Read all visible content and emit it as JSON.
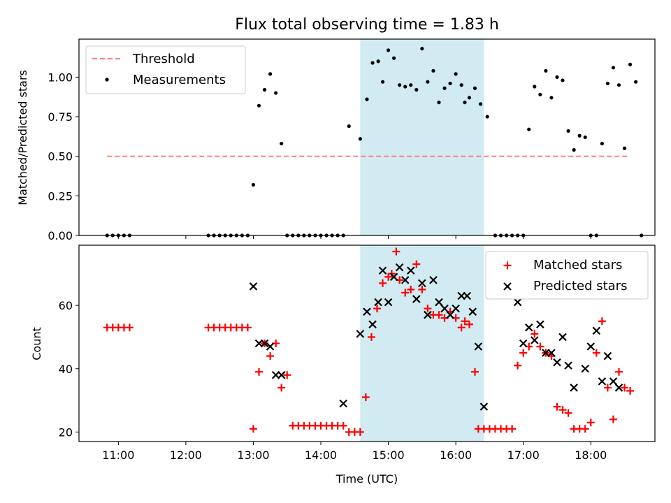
{
  "colors": {
    "threshold": "#ff7f7f",
    "measurement": "#000000",
    "matched": "#ff0000",
    "predicted": "#000000",
    "span": "#add8e6"
  },
  "chart_data": [
    {
      "type": "scatter",
      "title": "Flux total observing time = 1.83 h",
      "xlabel": "",
      "ylabel": "Matched/Predicted stars",
      "xlim": [
        "10:25",
        "18:57"
      ],
      "ylim": [
        0,
        1.24
      ],
      "y_ticks": [
        0,
        0.25,
        0.5,
        0.75,
        1.0
      ],
      "y_tick_labels": [
        "0.00",
        "0.25",
        "0.50",
        "0.75",
        "1.00"
      ],
      "highlight_span": [
        "14:35",
        "16:25"
      ],
      "legend": {
        "location": "upper left",
        "entries": [
          "Threshold",
          "Measurements"
        ]
      },
      "series": [
        {
          "name": "Threshold",
          "kind": "dashed-line",
          "points": [
            [
              "10:50",
              0.5
            ],
            [
              "18:35",
              0.5
            ]
          ]
        },
        {
          "name": "Measurements",
          "kind": "dot",
          "points": [
            [
              "10:50",
              0
            ],
            [
              "10:55",
              0
            ],
            [
              "11:00",
              0
            ],
            [
              "11:05",
              0
            ],
            [
              "11:10",
              0
            ],
            [
              "12:20",
              0
            ],
            [
              "12:25",
              0
            ],
            [
              "12:30",
              0
            ],
            [
              "12:35",
              0
            ],
            [
              "12:40",
              0
            ],
            [
              "12:45",
              0
            ],
            [
              "12:50",
              0
            ],
            [
              "12:55",
              0
            ],
            [
              "13:00",
              0.32
            ],
            [
              "13:05",
              0.82
            ],
            [
              "13:10",
              0.92
            ],
            [
              "13:15",
              1.02
            ],
            [
              "13:20",
              0.9
            ],
            [
              "13:25",
              0.58
            ],
            [
              "13:30",
              0
            ],
            [
              "13:35",
              0
            ],
            [
              "13:40",
              0
            ],
            [
              "13:45",
              0
            ],
            [
              "13:50",
              0
            ],
            [
              "13:55",
              0
            ],
            [
              "14:00",
              0
            ],
            [
              "14:05",
              0
            ],
            [
              "14:10",
              0
            ],
            [
              "14:15",
              0
            ],
            [
              "14:20",
              0
            ],
            [
              "14:25",
              0.69
            ],
            [
              "14:35",
              0.61
            ],
            [
              "14:41",
              0.86
            ],
            [
              "14:46",
              1.09
            ],
            [
              "14:51",
              1.1
            ],
            [
              "14:55",
              0.97
            ],
            [
              "15:00",
              1.17
            ],
            [
              "15:05",
              1.12
            ],
            [
              "15:10",
              0.95
            ],
            [
              "15:15",
              0.94
            ],
            [
              "15:20",
              0.95
            ],
            [
              "15:25",
              0.92
            ],
            [
              "15:30",
              1.18
            ],
            [
              "15:35",
              0.97
            ],
            [
              "15:40",
              1.04
            ],
            [
              "15:45",
              0.84
            ],
            [
              "15:50",
              0.93
            ],
            [
              "15:55",
              0.96
            ],
            [
              "16:00",
              1.02
            ],
            [
              "16:05",
              0.95
            ],
            [
              "16:08",
              0.84
            ],
            [
              "16:12",
              0.87
            ],
            [
              "16:17",
              0.93
            ],
            [
              "16:22",
              0.83
            ],
            [
              "16:28",
              0.75
            ],
            [
              "16:35",
              0
            ],
            [
              "16:40",
              0
            ],
            [
              "16:45",
              0
            ],
            [
              "16:50",
              0
            ],
            [
              "16:55",
              0
            ],
            [
              "17:00",
              0
            ],
            [
              "17:05",
              0.67
            ],
            [
              "17:10",
              0.94
            ],
            [
              "17:15",
              0.89
            ],
            [
              "17:20",
              1.04
            ],
            [
              "17:25",
              0.87
            ],
            [
              "17:30",
              1.0
            ],
            [
              "17:35",
              0.98
            ],
            [
              "17:40",
              0.66
            ],
            [
              "17:45",
              0.54
            ],
            [
              "17:50",
              0.63
            ],
            [
              "17:55",
              0.62
            ],
            [
              "18:00",
              0
            ],
            [
              "18:05",
              0
            ],
            [
              "18:10",
              0.58
            ],
            [
              "18:15",
              0.96
            ],
            [
              "18:20",
              1.06
            ],
            [
              "18:25",
              0.95
            ],
            [
              "18:30",
              0.55
            ],
            [
              "18:35",
              1.08
            ],
            [
              "18:40",
              0.97
            ],
            [
              "18:45",
              0
            ]
          ]
        }
      ]
    },
    {
      "type": "scatter",
      "title": "",
      "xlabel": "Time (UTC)",
      "ylabel": "Count",
      "xlim": [
        "10:25",
        "18:57"
      ],
      "ylim": [
        17,
        79
      ],
      "x_ticks": [
        "11:00",
        "12:00",
        "13:00",
        "14:00",
        "15:00",
        "16:00",
        "17:00",
        "18:00"
      ],
      "y_ticks": [
        20,
        40,
        60
      ],
      "highlight_span": [
        "14:35",
        "16:25"
      ],
      "legend": {
        "location": "upper right",
        "entries": [
          "Matched stars",
          "Predicted stars"
        ]
      },
      "series": [
        {
          "name": "Matched stars",
          "kind": "plus",
          "points": [
            [
              "10:50",
              53
            ],
            [
              "10:55",
              53
            ],
            [
              "11:00",
              53
            ],
            [
              "11:05",
              53
            ],
            [
              "11:10",
              53
            ],
            [
              "12:20",
              53
            ],
            [
              "12:25",
              53
            ],
            [
              "12:30",
              53
            ],
            [
              "12:35",
              53
            ],
            [
              "12:40",
              53
            ],
            [
              "12:45",
              53
            ],
            [
              "12:50",
              53
            ],
            [
              "12:55",
              53
            ],
            [
              "13:00",
              21
            ],
            [
              "13:05",
              39
            ],
            [
              "13:10",
              48
            ],
            [
              "13:15",
              44
            ],
            [
              "13:20",
              48
            ],
            [
              "13:25",
              34
            ],
            [
              "13:30",
              38
            ],
            [
              "13:35",
              22
            ],
            [
              "13:40",
              22
            ],
            [
              "13:45",
              22
            ],
            [
              "13:50",
              22
            ],
            [
              "13:55",
              22
            ],
            [
              "14:00",
              22
            ],
            [
              "14:05",
              22
            ],
            [
              "14:10",
              22
            ],
            [
              "14:15",
              22
            ],
            [
              "14:20",
              22
            ],
            [
              "14:25",
              20
            ],
            [
              "14:30",
              20
            ],
            [
              "14:35",
              20
            ],
            [
              "14:40",
              31
            ],
            [
              "14:45",
              50
            ],
            [
              "14:50",
              59
            ],
            [
              "14:55",
              67
            ],
            [
              "15:00",
              69
            ],
            [
              "15:03",
              70
            ],
            [
              "15:07",
              77
            ],
            [
              "15:10",
              68
            ],
            [
              "15:15",
              64
            ],
            [
              "15:20",
              65
            ],
            [
              "15:25",
              73
            ],
            [
              "15:30",
              65
            ],
            [
              "15:35",
              59
            ],
            [
              "15:40",
              57
            ],
            [
              "15:45",
              57
            ],
            [
              "15:50",
              56
            ],
            [
              "15:55",
              58
            ],
            [
              "16:00",
              56
            ],
            [
              "16:05",
              53
            ],
            [
              "16:08",
              55
            ],
            [
              "16:12",
              54
            ],
            [
              "16:17",
              39
            ],
            [
              "16:20",
              21
            ],
            [
              "16:25",
              21
            ],
            [
              "16:30",
              21
            ],
            [
              "16:35",
              21
            ],
            [
              "16:40",
              21
            ],
            [
              "16:45",
              21
            ],
            [
              "16:50",
              21
            ],
            [
              "16:55",
              41
            ],
            [
              "17:00",
              45
            ],
            [
              "17:05",
              47
            ],
            [
              "17:10",
              51
            ],
            [
              "17:15",
              47
            ],
            [
              "17:20",
              45
            ],
            [
              "17:25",
              44
            ],
            [
              "17:30",
              28
            ],
            [
              "17:35",
              27
            ],
            [
              "17:40",
              26
            ],
            [
              "17:45",
              21
            ],
            [
              "17:50",
              21
            ],
            [
              "17:55",
              21
            ],
            [
              "18:00",
              23
            ],
            [
              "18:05",
              45
            ],
            [
              "18:10",
              55
            ],
            [
              "18:15",
              34
            ],
            [
              "18:20",
              24
            ],
            [
              "18:25",
              39
            ],
            [
              "18:30",
              34
            ],
            [
              "18:35",
              33
            ]
          ]
        },
        {
          "name": "Predicted stars",
          "kind": "cross",
          "points": [
            [
              "13:00",
              66
            ],
            [
              "13:05",
              48
            ],
            [
              "13:10",
              48
            ],
            [
              "13:15",
              47
            ],
            [
              "13:20",
              38
            ],
            [
              "13:25",
              38
            ],
            [
              "14:20",
              29
            ],
            [
              "14:35",
              51
            ],
            [
              "14:41",
              58
            ],
            [
              "14:46",
              54
            ],
            [
              "14:51",
              61
            ],
            [
              "14:55",
              71
            ],
            [
              "15:00",
              61
            ],
            [
              "15:05",
              69
            ],
            [
              "15:10",
              72
            ],
            [
              "15:15",
              68
            ],
            [
              "15:20",
              71
            ],
            [
              "15:25",
              62
            ],
            [
              "15:30",
              67
            ],
            [
              "15:35",
              57
            ],
            [
              "15:40",
              68
            ],
            [
              "15:45",
              61
            ],
            [
              "15:50",
              59
            ],
            [
              "15:55",
              57
            ],
            [
              "16:00",
              59
            ],
            [
              "16:05",
              63
            ],
            [
              "16:10",
              63
            ],
            [
              "16:15",
              58
            ],
            [
              "16:20",
              47
            ],
            [
              "16:25",
              28
            ],
            [
              "16:55",
              61
            ],
            [
              "17:00",
              48
            ],
            [
              "17:05",
              53
            ],
            [
              "17:10",
              49
            ],
            [
              "17:15",
              54
            ],
            [
              "17:20",
              45
            ],
            [
              "17:25",
              45
            ],
            [
              "17:30",
              42
            ],
            [
              "17:35",
              50
            ],
            [
              "17:40",
              41
            ],
            [
              "17:45",
              34
            ],
            [
              "17:55",
              40
            ],
            [
              "18:00",
              47
            ],
            [
              "18:05",
              52
            ],
            [
              "18:10",
              36
            ],
            [
              "18:15",
              44
            ],
            [
              "18:20",
              36
            ],
            [
              "18:25",
              34
            ]
          ]
        }
      ]
    }
  ]
}
